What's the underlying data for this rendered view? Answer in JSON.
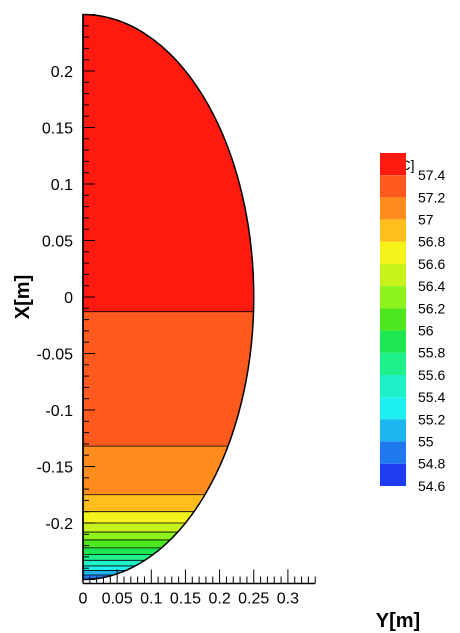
{
  "chart_data": {
    "type": "heatmap",
    "title": "",
    "xlabel": "Y[m]",
    "ylabel": "X[m]",
    "xlim": [
      0,
      0.34
    ],
    "ylim": [
      -0.25,
      0.25
    ],
    "x_ticks": [
      "0",
      "0.05",
      "0.1",
      "0.15",
      "0.2",
      "0.25",
      "0.3"
    ],
    "x_tick_values": [
      0,
      0.05,
      0.1,
      0.15,
      0.2,
      0.25,
      0.3
    ],
    "y_ticks": [
      "0.2",
      "0.15",
      "0.1",
      "0.05",
      "0",
      "-0.05",
      "-0.1",
      "-0.15",
      "-0.2"
    ],
    "y_tick_values": [
      0.2,
      0.15,
      0.1,
      0.05,
      0,
      -0.05,
      -0.1,
      -0.15,
      -0.2
    ],
    "domain": {
      "shape": "half-disc",
      "radius": 0.25
    },
    "legend": {
      "title": "T[ºC]",
      "position": "right",
      "levels": [
        {
          "label": "57.4",
          "value": 57.4,
          "color": "#ff1a10"
        },
        {
          "label": "57.2",
          "value": 57.2,
          "color": "#ff5a1e"
        },
        {
          "label": "57",
          "value": 57.0,
          "color": "#ff8c1c"
        },
        {
          "label": "56.8",
          "value": 56.8,
          "color": "#ffbe1c"
        },
        {
          "label": "56.6",
          "value": 56.6,
          "color": "#f6f21c"
        },
        {
          "label": "56.4",
          "value": 56.4,
          "color": "#c8f21c"
        },
        {
          "label": "56.2",
          "value": 56.2,
          "color": "#8ef21c"
        },
        {
          "label": "56",
          "value": 56.0,
          "color": "#4ee61e"
        },
        {
          "label": "55.8",
          "value": 55.8,
          "color": "#1ee650"
        },
        {
          "label": "55.6",
          "value": 55.6,
          "color": "#1ef08c"
        },
        {
          "label": "55.4",
          "value": 55.4,
          "color": "#1ef0c8"
        },
        {
          "label": "55.2",
          "value": 55.2,
          "color": "#1ef0f0"
        },
        {
          "label": "55",
          "value": 55.0,
          "color": "#1eb4f0"
        },
        {
          "label": "54.8",
          "value": 54.8,
          "color": "#1e78f0"
        },
        {
          "label": "54.6",
          "value": 54.6,
          "color": "#1e3cf0"
        }
      ]
    },
    "regions": [
      {
        "x_from": -0.013,
        "x_to": 0.25,
        "temperature_band": "57.4"
      },
      {
        "x_from": -0.132,
        "x_to": -0.013,
        "temperature_band": "57.2"
      },
      {
        "x_from": -0.175,
        "x_to": -0.132,
        "temperature_band": "57"
      },
      {
        "x_from": -0.19,
        "x_to": -0.175,
        "temperature_band": "56.8"
      },
      {
        "x_from": -0.2,
        "x_to": -0.19,
        "temperature_band": "56.6"
      },
      {
        "x_from": -0.208,
        "x_to": -0.2,
        "temperature_band": "56.4"
      },
      {
        "x_from": -0.215,
        "x_to": -0.208,
        "temperature_band": "56.2"
      },
      {
        "x_from": -0.222,
        "x_to": -0.215,
        "temperature_band": "56"
      },
      {
        "x_from": -0.228,
        "x_to": -0.222,
        "temperature_band": "55.8"
      },
      {
        "x_from": -0.233,
        "x_to": -0.228,
        "temperature_band": "55.6"
      },
      {
        "x_from": -0.238,
        "x_to": -0.233,
        "temperature_band": "55.4"
      },
      {
        "x_from": -0.242,
        "x_to": -0.238,
        "temperature_band": "55.2"
      },
      {
        "x_from": -0.246,
        "x_to": -0.242,
        "temperature_band": "55"
      },
      {
        "x_from": -0.25,
        "x_to": -0.246,
        "temperature_band": "54.8"
      }
    ],
    "grid": false
  }
}
